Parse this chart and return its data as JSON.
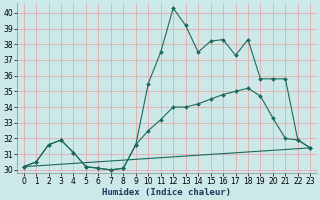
{
  "xlabel": "Humidex (Indice chaleur)",
  "xlim": [
    -0.5,
    23.5
  ],
  "ylim": [
    29.8,
    40.6
  ],
  "yticks": [
    30,
    31,
    32,
    33,
    34,
    35,
    36,
    37,
    38,
    39,
    40
  ],
  "xticks": [
    0,
    1,
    2,
    3,
    4,
    5,
    6,
    7,
    8,
    9,
    10,
    11,
    12,
    13,
    14,
    15,
    16,
    17,
    18,
    19,
    20,
    21,
    22,
    23
  ],
  "bg_color": "#cce8e8",
  "line_color": "#1a6b5a",
  "grid_color_v": "#e8a0a0",
  "grid_color_h": "#e8a0a0",
  "line1_x": [
    0,
    1,
    2,
    3,
    4,
    5,
    6,
    7,
    8,
    9,
    10,
    11,
    12,
    13,
    14,
    15,
    16,
    17,
    18,
    19,
    20,
    21,
    22,
    23
  ],
  "line1_y": [
    30.2,
    30.5,
    31.6,
    31.9,
    31.1,
    30.2,
    30.1,
    30.0,
    30.1,
    31.6,
    35.5,
    37.5,
    40.3,
    39.2,
    37.5,
    38.2,
    38.3,
    37.3,
    38.3,
    35.8,
    35.8,
    35.8,
    31.9,
    31.4
  ],
  "line2_x": [
    0,
    1,
    2,
    3,
    4,
    5,
    6,
    7,
    8,
    9,
    10,
    11,
    12,
    13,
    14,
    15,
    16,
    17,
    18,
    19,
    20,
    21,
    22,
    23
  ],
  "line2_y": [
    30.2,
    30.5,
    31.6,
    31.9,
    31.1,
    30.2,
    30.1,
    30.0,
    30.1,
    31.6,
    32.5,
    33.2,
    34.0,
    34.0,
    34.2,
    34.5,
    34.8,
    35.0,
    35.2,
    34.7,
    33.3,
    32.0,
    31.9,
    31.4
  ],
  "line3_x": [
    0,
    23
  ],
  "line3_y": [
    30.2,
    31.4
  ],
  "figsize": [
    3.2,
    2.0
  ],
  "dpi": 100
}
